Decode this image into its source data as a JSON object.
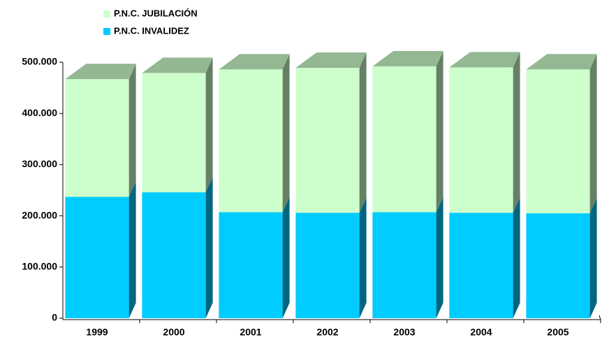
{
  "chart_data": {
    "type": "bar3d_stacked",
    "categories": [
      "1999",
      "2000",
      "2001",
      "2002",
      "2003",
      "2004",
      "2005"
    ],
    "series": [
      {
        "name": "P.N.C. JUBILACIÓN",
        "color": "#ccffcc",
        "values": [
          230000,
          233000,
          279000,
          283000,
          285000,
          284000,
          281000
        ]
      },
      {
        "name": "P.N.C. INVALIDEZ",
        "color": "#00ccff",
        "values": [
          237000,
          246000,
          207000,
          206000,
          207000,
          206000,
          205000
        ]
      }
    ],
    "ylim": [
      0,
      500000
    ],
    "yticks": [
      0,
      {
        "value": 100000,
        "label": "100.000"
      },
      {
        "value": 200000,
        "label": "200.000"
      },
      {
        "value": 300000,
        "label": "300.000"
      },
      {
        "value": 400000,
        "label": "400.000"
      },
      {
        "value": 500000,
        "label": "500.000"
      }
    ]
  }
}
